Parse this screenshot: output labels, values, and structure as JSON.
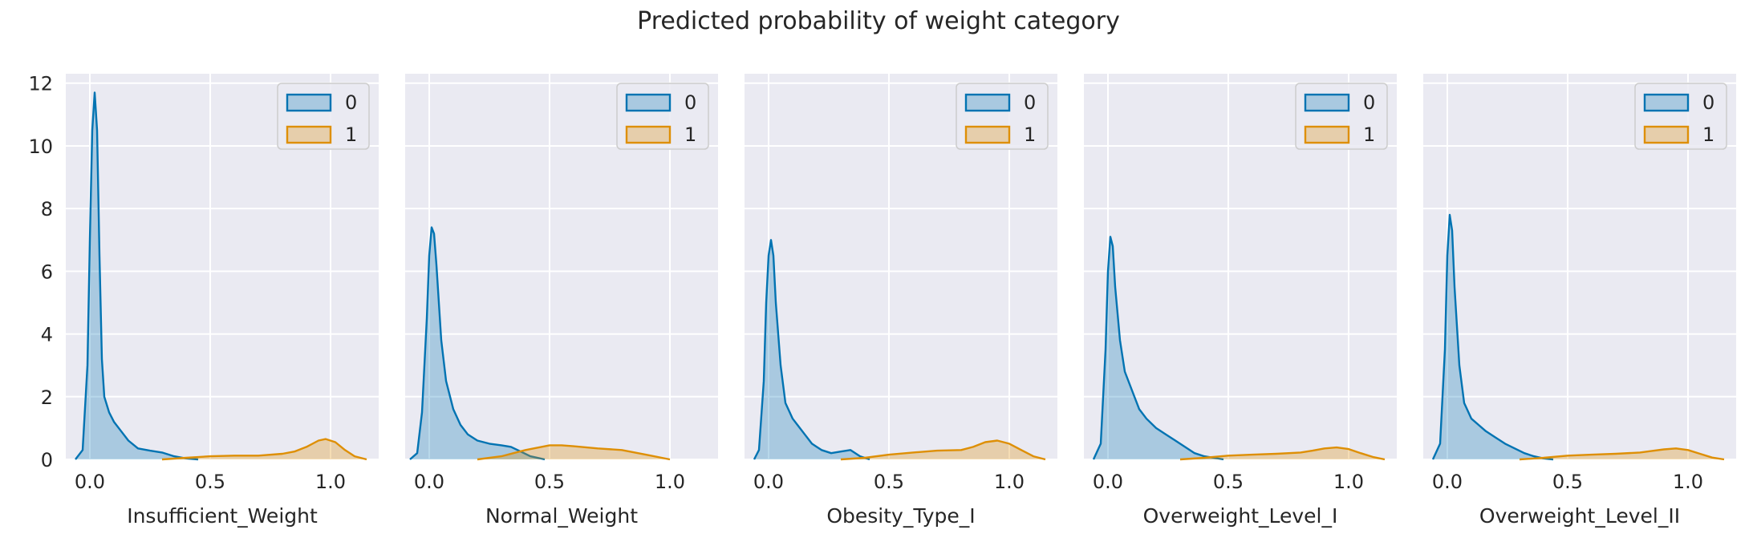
{
  "figure": {
    "title": "Predicted probability of weight category"
  },
  "colors": {
    "series0": "#0173b2",
    "series1": "#de8f05",
    "panel_bg": "#eaeaf2",
    "grid": "#ffffff"
  },
  "chart_data": [
    {
      "type": "area",
      "xlabel": "Insufficient_Weight",
      "xlim": [
        -0.1,
        1.2
      ],
      "ylim": [
        0,
        12.3
      ],
      "xticks": [
        "0.0",
        "0.5",
        "1.0"
      ],
      "yticks": [
        "0",
        "2",
        "4",
        "6",
        "8",
        "10",
        "12"
      ],
      "legend": {
        "position": "top-right",
        "entries": [
          "0",
          "1"
        ]
      },
      "grid": true,
      "series": [
        {
          "name": "0",
          "x": [
            -0.06,
            -0.03,
            -0.01,
            0.0,
            0.01,
            0.02,
            0.03,
            0.04,
            0.05,
            0.06,
            0.08,
            0.1,
            0.13,
            0.16,
            0.2,
            0.25,
            0.3,
            0.35,
            0.4,
            0.45
          ],
          "y": [
            0,
            0.3,
            3.0,
            7.0,
            10.5,
            11.7,
            10.5,
            6.5,
            3.2,
            2.0,
            1.5,
            1.2,
            0.9,
            0.6,
            0.35,
            0.28,
            0.22,
            0.1,
            0.03,
            0
          ]
        },
        {
          "name": "1",
          "x": [
            0.3,
            0.4,
            0.5,
            0.6,
            0.7,
            0.8,
            0.85,
            0.9,
            0.95,
            0.98,
            1.02,
            1.06,
            1.1,
            1.15
          ],
          "y": [
            0,
            0.05,
            0.1,
            0.12,
            0.12,
            0.18,
            0.25,
            0.4,
            0.6,
            0.65,
            0.55,
            0.3,
            0.1,
            0
          ]
        }
      ]
    },
    {
      "type": "area",
      "xlabel": "Normal_Weight",
      "xlim": [
        -0.1,
        1.2
      ],
      "ylim": [
        0,
        12.3
      ],
      "xticks": [
        "0.0",
        "0.5",
        "1.0"
      ],
      "yticks": [],
      "legend": {
        "position": "top-right",
        "entries": [
          "0",
          "1"
        ]
      },
      "grid": true,
      "series": [
        {
          "name": "0",
          "x": [
            -0.08,
            -0.05,
            -0.03,
            -0.01,
            0.0,
            0.01,
            0.02,
            0.03,
            0.05,
            0.07,
            0.1,
            0.13,
            0.16,
            0.2,
            0.25,
            0.3,
            0.34,
            0.38,
            0.42,
            0.48
          ],
          "y": [
            0,
            0.2,
            1.5,
            4.5,
            6.5,
            7.4,
            7.2,
            6.2,
            3.8,
            2.5,
            1.6,
            1.1,
            0.8,
            0.6,
            0.5,
            0.45,
            0.4,
            0.25,
            0.1,
            0
          ]
        },
        {
          "name": "1",
          "x": [
            0.2,
            0.3,
            0.4,
            0.5,
            0.55,
            0.6,
            0.7,
            0.8,
            0.9,
            1.0
          ],
          "y": [
            0,
            0.1,
            0.3,
            0.45,
            0.45,
            0.42,
            0.35,
            0.3,
            0.15,
            0
          ]
        }
      ]
    },
    {
      "type": "area",
      "xlabel": "Obesity_Type_I",
      "xlim": [
        -0.1,
        1.2
      ],
      "ylim": [
        0,
        12.3
      ],
      "xticks": [
        "0.0",
        "0.5",
        "1.0"
      ],
      "yticks": [],
      "legend": {
        "position": "top-right",
        "entries": [
          "0",
          "1"
        ]
      },
      "grid": true,
      "series": [
        {
          "name": "0",
          "x": [
            -0.06,
            -0.04,
            -0.02,
            -0.01,
            0.0,
            0.01,
            0.02,
            0.03,
            0.05,
            0.07,
            0.1,
            0.12,
            0.15,
            0.18,
            0.22,
            0.26,
            0.3,
            0.34,
            0.38,
            0.42
          ],
          "y": [
            0,
            0.3,
            2.5,
            5.0,
            6.5,
            7.0,
            6.5,
            5.0,
            3.0,
            1.8,
            1.3,
            1.1,
            0.8,
            0.5,
            0.3,
            0.2,
            0.25,
            0.3,
            0.1,
            0
          ]
        },
        {
          "name": "1",
          "x": [
            0.3,
            0.4,
            0.5,
            0.6,
            0.7,
            0.8,
            0.85,
            0.9,
            0.95,
            1.0,
            1.05,
            1.1,
            1.15
          ],
          "y": [
            0,
            0.05,
            0.15,
            0.22,
            0.28,
            0.3,
            0.4,
            0.55,
            0.6,
            0.5,
            0.3,
            0.1,
            0
          ]
        }
      ]
    },
    {
      "type": "area",
      "xlabel": "Overweight_Level_I",
      "xlim": [
        -0.1,
        1.2
      ],
      "ylim": [
        0,
        12.3
      ],
      "xticks": [
        "0.0",
        "0.5",
        "1.0"
      ],
      "yticks": [],
      "legend": {
        "position": "top-right",
        "entries": [
          "0",
          "1"
        ]
      },
      "grid": true,
      "series": [
        {
          "name": "0",
          "x": [
            -0.06,
            -0.03,
            -0.01,
            0.0,
            0.01,
            0.02,
            0.03,
            0.05,
            0.07,
            0.1,
            0.13,
            0.16,
            0.2,
            0.24,
            0.28,
            0.32,
            0.36,
            0.4,
            0.44,
            0.48
          ],
          "y": [
            0,
            0.5,
            3.5,
            6.0,
            7.1,
            6.8,
            5.5,
            3.8,
            2.8,
            2.2,
            1.6,
            1.3,
            1.0,
            0.8,
            0.6,
            0.4,
            0.2,
            0.1,
            0.05,
            0
          ]
        },
        {
          "name": "1",
          "x": [
            0.3,
            0.4,
            0.5,
            0.6,
            0.7,
            0.8,
            0.85,
            0.9,
            0.95,
            1.0,
            1.05,
            1.1,
            1.15
          ],
          "y": [
            0,
            0.05,
            0.12,
            0.15,
            0.18,
            0.22,
            0.28,
            0.35,
            0.38,
            0.33,
            0.2,
            0.08,
            0
          ]
        }
      ]
    },
    {
      "type": "area",
      "xlabel": "Overweight_Level_II",
      "xlim": [
        -0.1,
        1.2
      ],
      "ylim": [
        0,
        12.3
      ],
      "xticks": [
        "0.0",
        "0.5",
        "1.0"
      ],
      "yticks": [],
      "legend": {
        "position": "top-right",
        "entries": [
          "0",
          "1"
        ]
      },
      "grid": true,
      "series": [
        {
          "name": "0",
          "x": [
            -0.06,
            -0.03,
            -0.01,
            0.0,
            0.01,
            0.02,
            0.03,
            0.05,
            0.07,
            0.1,
            0.13,
            0.16,
            0.2,
            0.24,
            0.28,
            0.32,
            0.36,
            0.4,
            0.44
          ],
          "y": [
            0,
            0.5,
            3.5,
            6.5,
            7.8,
            7.3,
            5.5,
            3.0,
            1.8,
            1.3,
            1.1,
            0.9,
            0.7,
            0.5,
            0.35,
            0.2,
            0.1,
            0.03,
            0
          ]
        },
        {
          "name": "1",
          "x": [
            0.3,
            0.4,
            0.5,
            0.6,
            0.7,
            0.8,
            0.85,
            0.9,
            0.95,
            1.0,
            1.05,
            1.1,
            1.15
          ],
          "y": [
            0,
            0.05,
            0.12,
            0.15,
            0.18,
            0.22,
            0.27,
            0.32,
            0.35,
            0.3,
            0.18,
            0.06,
            0
          ]
        }
      ]
    }
  ]
}
